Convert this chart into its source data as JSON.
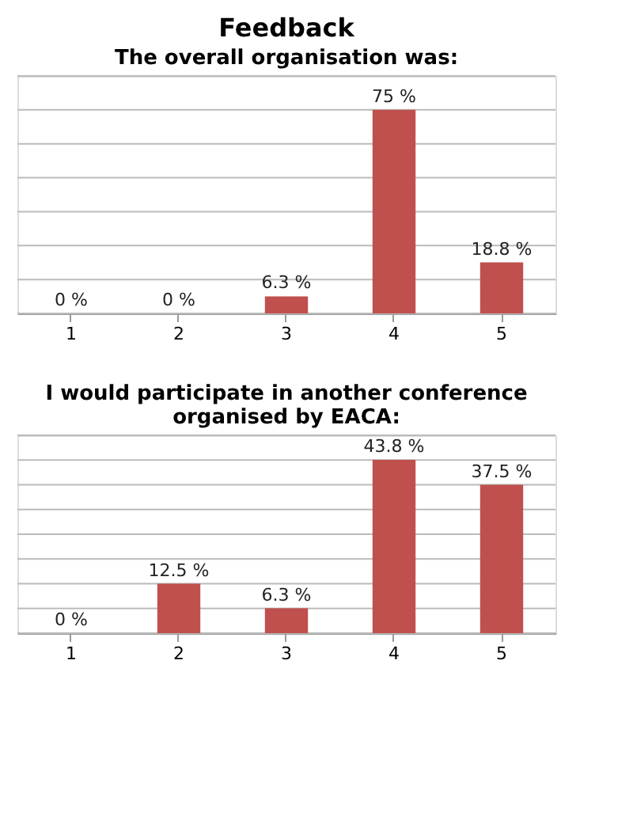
{
  "chart_data": [
    {
      "type": "other",
      "title": "Feedback"
    },
    {
      "type": "bar",
      "title": "The overall organisation was:",
      "categories": [
        "1",
        "2",
        "3",
        "4",
        "5"
      ],
      "series": [
        {
          "color": "#c0504d",
          "values": [
            0,
            0,
            6.3,
            75,
            18.8
          ],
          "value_labels": [
            "0 %",
            "0 %",
            "6.3 %",
            "75 %",
            "18.8 %"
          ]
        }
      ],
      "ylim": [
        0,
        87.5
      ],
      "yticks": [
        {
          "value": 0,
          "label": null
        },
        {
          "value": 12.5,
          "label": null
        },
        {
          "value": 25,
          "label": null
        },
        {
          "value": 37.5,
          "label": null
        },
        {
          "value": 50,
          "label": null
        },
        {
          "value": 62.5,
          "label": null
        },
        {
          "value": 75,
          "label": null
        },
        {
          "value": 87.5,
          "label": null
        }
      ],
      "grid": "y",
      "tick_labels": "x"
    },
    {
      "type": "bar",
      "title": [
        "I would participate in another conference",
        "organised by EACA:"
      ],
      "categories": [
        "1",
        "2",
        "3",
        "4",
        "5"
      ],
      "series": [
        {
          "color": "#c0504d",
          "values": [
            0,
            12.5,
            6.3,
            43.8,
            37.5
          ],
          "value_labels": [
            "0 %",
            "12.5 %",
            "6.3 %",
            "43.8 %",
            "37.5 %"
          ]
        }
      ],
      "ylim": [
        0,
        50
      ],
      "yticks": [
        {
          "value": 0,
          "label": null
        },
        {
          "value": 6.25,
          "label": null
        },
        {
          "value": 12.5,
          "label": null
        },
        {
          "value": 18.75,
          "label": null
        },
        {
          "value": 25,
          "label": null
        },
        {
          "value": 31.25,
          "label": null
        },
        {
          "value": 37.5,
          "label": null
        },
        {
          "value": 43.75,
          "label": null
        },
        {
          "value": 50,
          "label": null
        }
      ],
      "grid": "y",
      "tick_labels": "x"
    }
  ]
}
